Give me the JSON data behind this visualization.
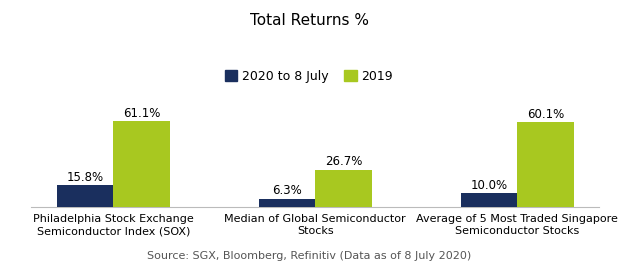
{
  "title": "Total Returns %",
  "categories": [
    "Philadelphia Stock Exchange\nSemiconductor Index (SOX)",
    "Median of Global Semiconductor\nStocks",
    "Average of 5 Most Traded Singapore\nSemiconductor Stocks"
  ],
  "series_2020": [
    15.8,
    6.3,
    10.0
  ],
  "series_2019": [
    61.1,
    26.7,
    60.1
  ],
  "color_2020": "#1a2f5e",
  "color_2019": "#a8c820",
  "legend_labels": [
    "2020 to 8 July",
    "2019"
  ],
  "source_text": "Source: SGX, Bloomberg, Refinitiv (Data as of 8 July 2020)",
  "bar_width": 0.28,
  "ylim": [
    0,
    75
  ],
  "background_color": "#ffffff",
  "title_fontsize": 11,
  "label_fontsize": 8.5,
  "tick_fontsize": 8,
  "source_fontsize": 8,
  "legend_fontsize": 9
}
